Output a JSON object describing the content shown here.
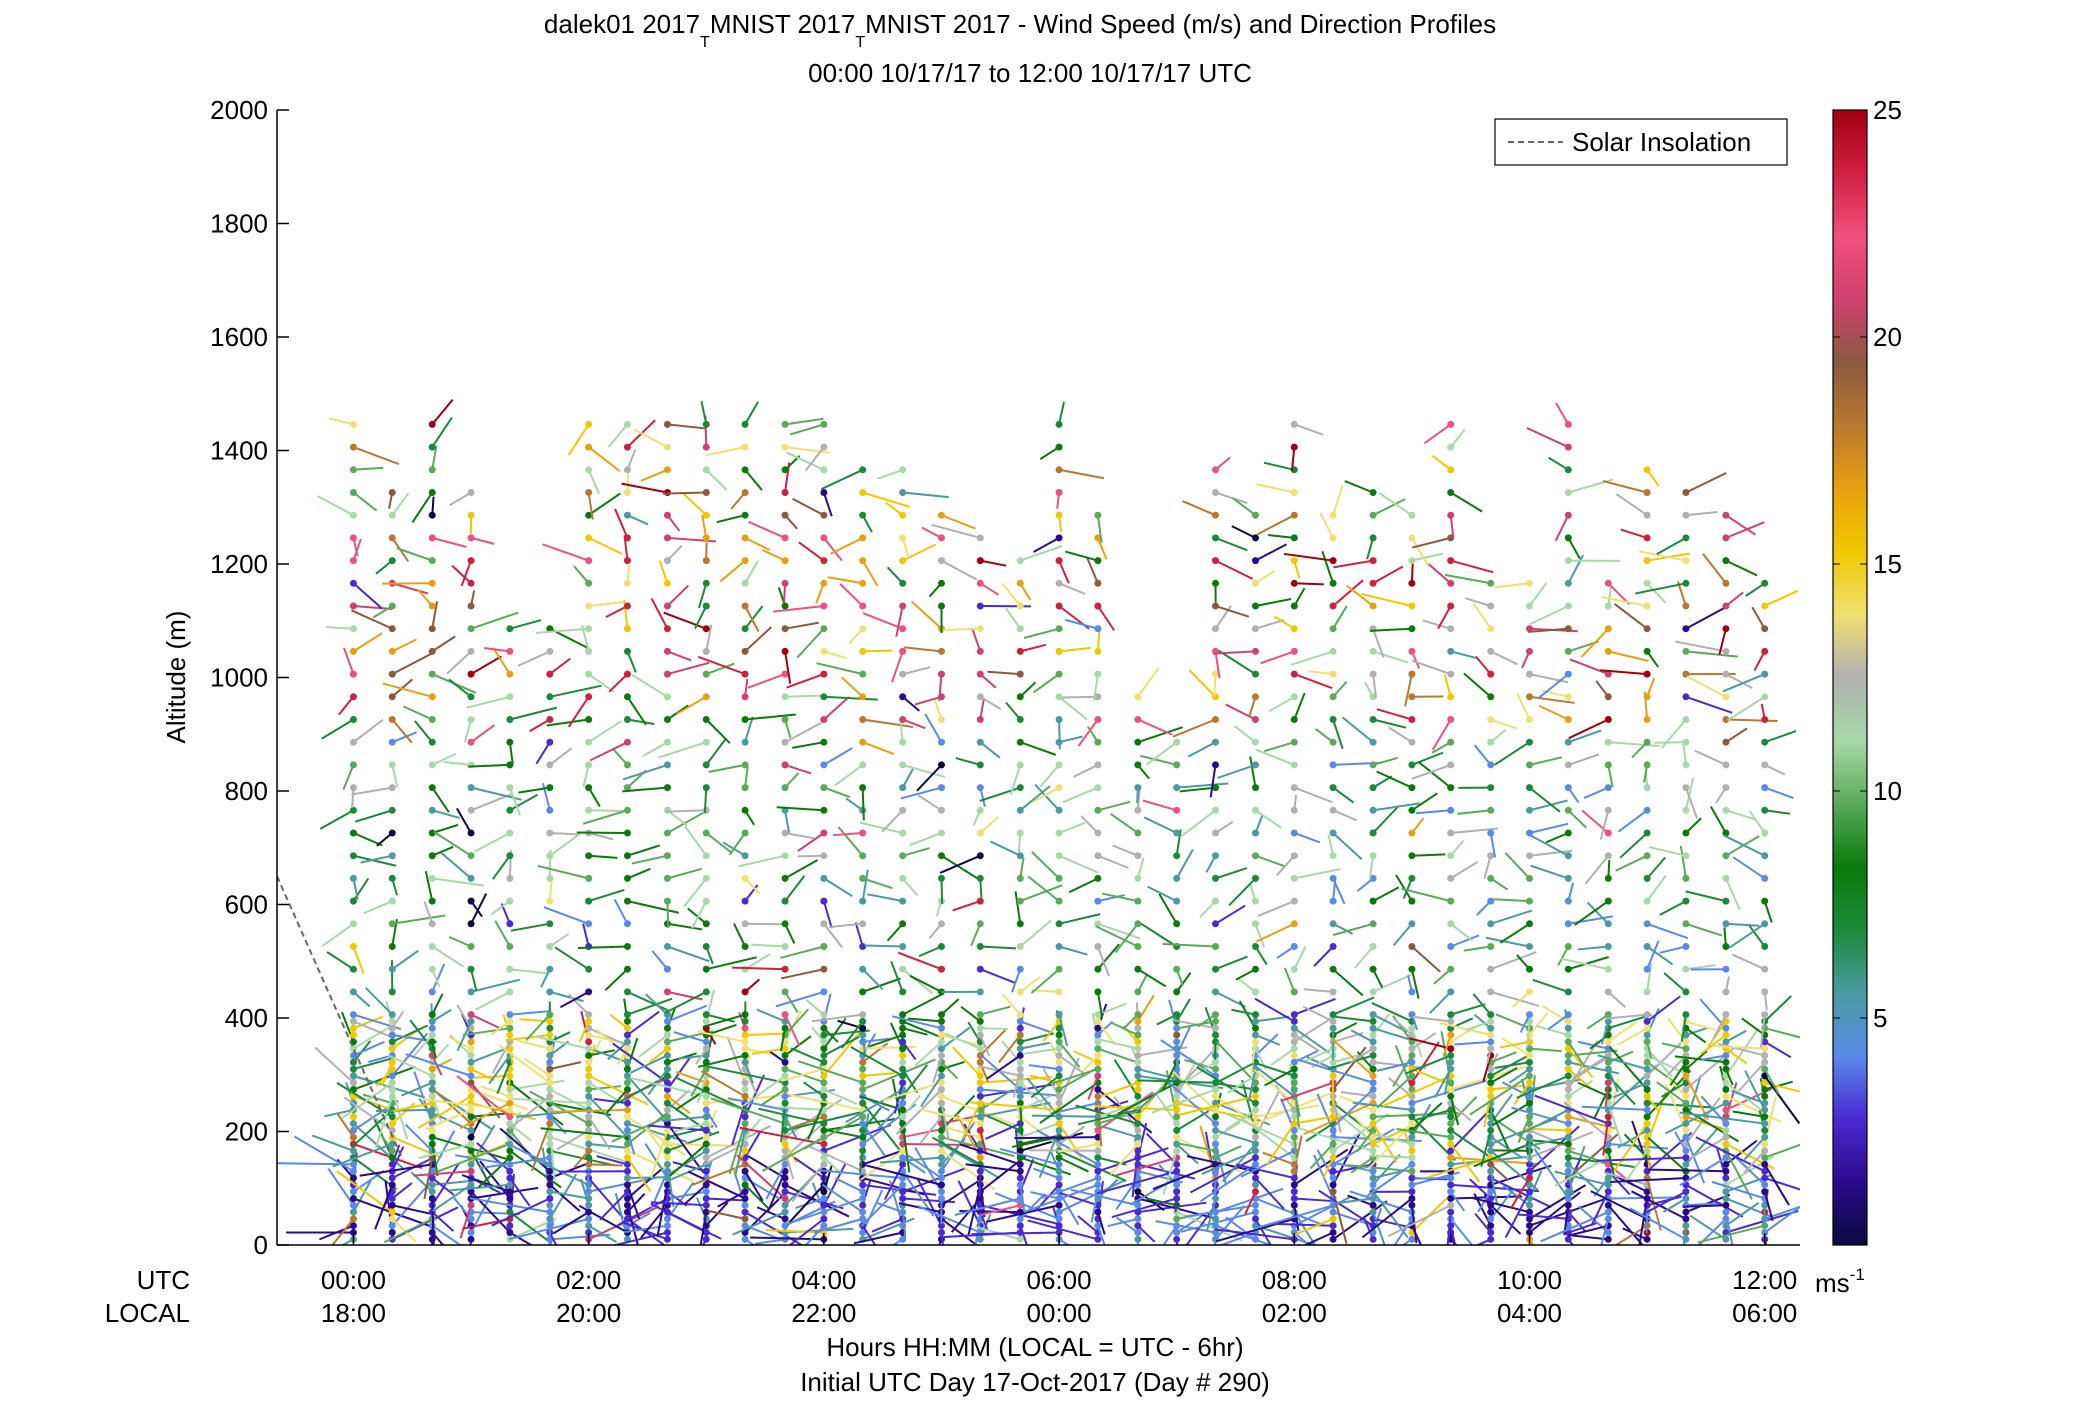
{
  "title": {
    "line1_part1": "dalek01 2017",
    "line1_sub1": "T",
    "line1_part2": "MNIST 2017",
    "line1_sub2": "T",
    "line1_part3": "MNIST 2017 - Wind Speed (m/s) and Direction Profiles",
    "line2": "00:00 10/17/17 to 12:00 10/17/17  UTC"
  },
  "legend": {
    "label": "Solar Insolation",
    "position": "top-right"
  },
  "x_row_labels": {
    "utc": "UTC",
    "local": "LOCAL"
  },
  "xlabel": {
    "line1": "Hours HH:MM  (LOCAL = UTC - 6hr)",
    "line2": "Initial UTC Day 17-Oct-2017 (Day # 290)"
  },
  "colorbar": {
    "ticks": [
      "25",
      "20",
      "15",
      "10",
      "5"
    ],
    "unit_base": "ms",
    "unit_exp": "-1",
    "colors": [
      "#0a0a3c",
      "#2a0a8c",
      "#4a2ad0",
      "#5a8ae8",
      "#4a9aa0",
      "#1a8a3a",
      "#0a7a0a",
      "#5aaa5a",
      "#a8d8a8",
      "#b0b0b0",
      "#f0e070",
      "#f0c800",
      "#e8a010",
      "#b87830",
      "#8a5a40",
      "#d04070",
      "#f05080",
      "#d02040",
      "#a00010"
    ]
  },
  "chart_data": {
    "type": "scatter",
    "ylabel": "Altitude (m)",
    "ylim": [
      0,
      2000
    ],
    "xlim_hours": [
      -0.65,
      12.3
    ],
    "y_ticks": [
      "0",
      "200",
      "400",
      "600",
      "800",
      "1000",
      "1200",
      "1400",
      "1600",
      "1800",
      "2000"
    ],
    "x_ticks_utc": [
      "00:00",
      "02:00",
      "04:00",
      "06:00",
      "08:00",
      "10:00",
      "12:00"
    ],
    "x_ticks_local": [
      "18:00",
      "20:00",
      "22:00",
      "00:00",
      "02:00",
      "04:00",
      "06:00"
    ],
    "colorbar_range_ms": [
      0,
      25
    ],
    "profile_times_utc_hours": [
      0,
      0.33,
      0.67,
      1,
      1.33,
      1.67,
      2,
      2.33,
      2.67,
      3,
      3.33,
      3.67,
      4,
      4.33,
      4.67,
      5,
      5.33,
      5.67,
      6,
      6.33,
      6.67,
      7,
      7.33,
      7.67,
      8,
      8.33,
      8.67,
      9,
      9.33,
      9.67,
      10,
      10.33,
      10.67,
      11,
      11.33,
      11.67,
      12
    ],
    "profile_top_altitude_m": [
      1480,
      1350,
      1480,
      1350,
      1100,
      1100,
      1480,
      1480,
      1480,
      1480,
      1480,
      1480,
      1480,
      1400,
      1380,
      1300,
      1250,
      1230,
      1480,
      1300,
      1000,
      900,
      1400,
      1300,
      1480,
      1300,
      1350,
      1300,
      1480,
      1200,
      1200,
      1450,
      1200,
      1400,
      1350,
      1300,
      1200
    ],
    "solar_insolation_line": {
      "style": "dashed",
      "points": [
        {
          "x": -0.65,
          "y": 650
        },
        {
          "x": 0.42,
          "y": 150
        }
      ]
    },
    "series": [
      {
        "name": "Solar Insolation",
        "style": "dashed",
        "color": "#666666"
      }
    ],
    "wind_speed_bands_by_altitude": [
      {
        "altitude_range_m": [
          0,
          150
        ],
        "typical_speed_ms": 3,
        "color": "#3a1aa8"
      },
      {
        "altitude_range_m": [
          150,
          400
        ],
        "typical_speed_ms": 6,
        "color": "#1a8a3a"
      },
      {
        "altitude_range_m": [
          400,
          900
        ],
        "typical_speed_ms": 8,
        "color": "#0a7a0a"
      },
      {
        "altitude_range_m": [
          900,
          1500
        ],
        "typical_speed_ms": 20,
        "color": "#b00020"
      }
    ],
    "grid": false
  }
}
